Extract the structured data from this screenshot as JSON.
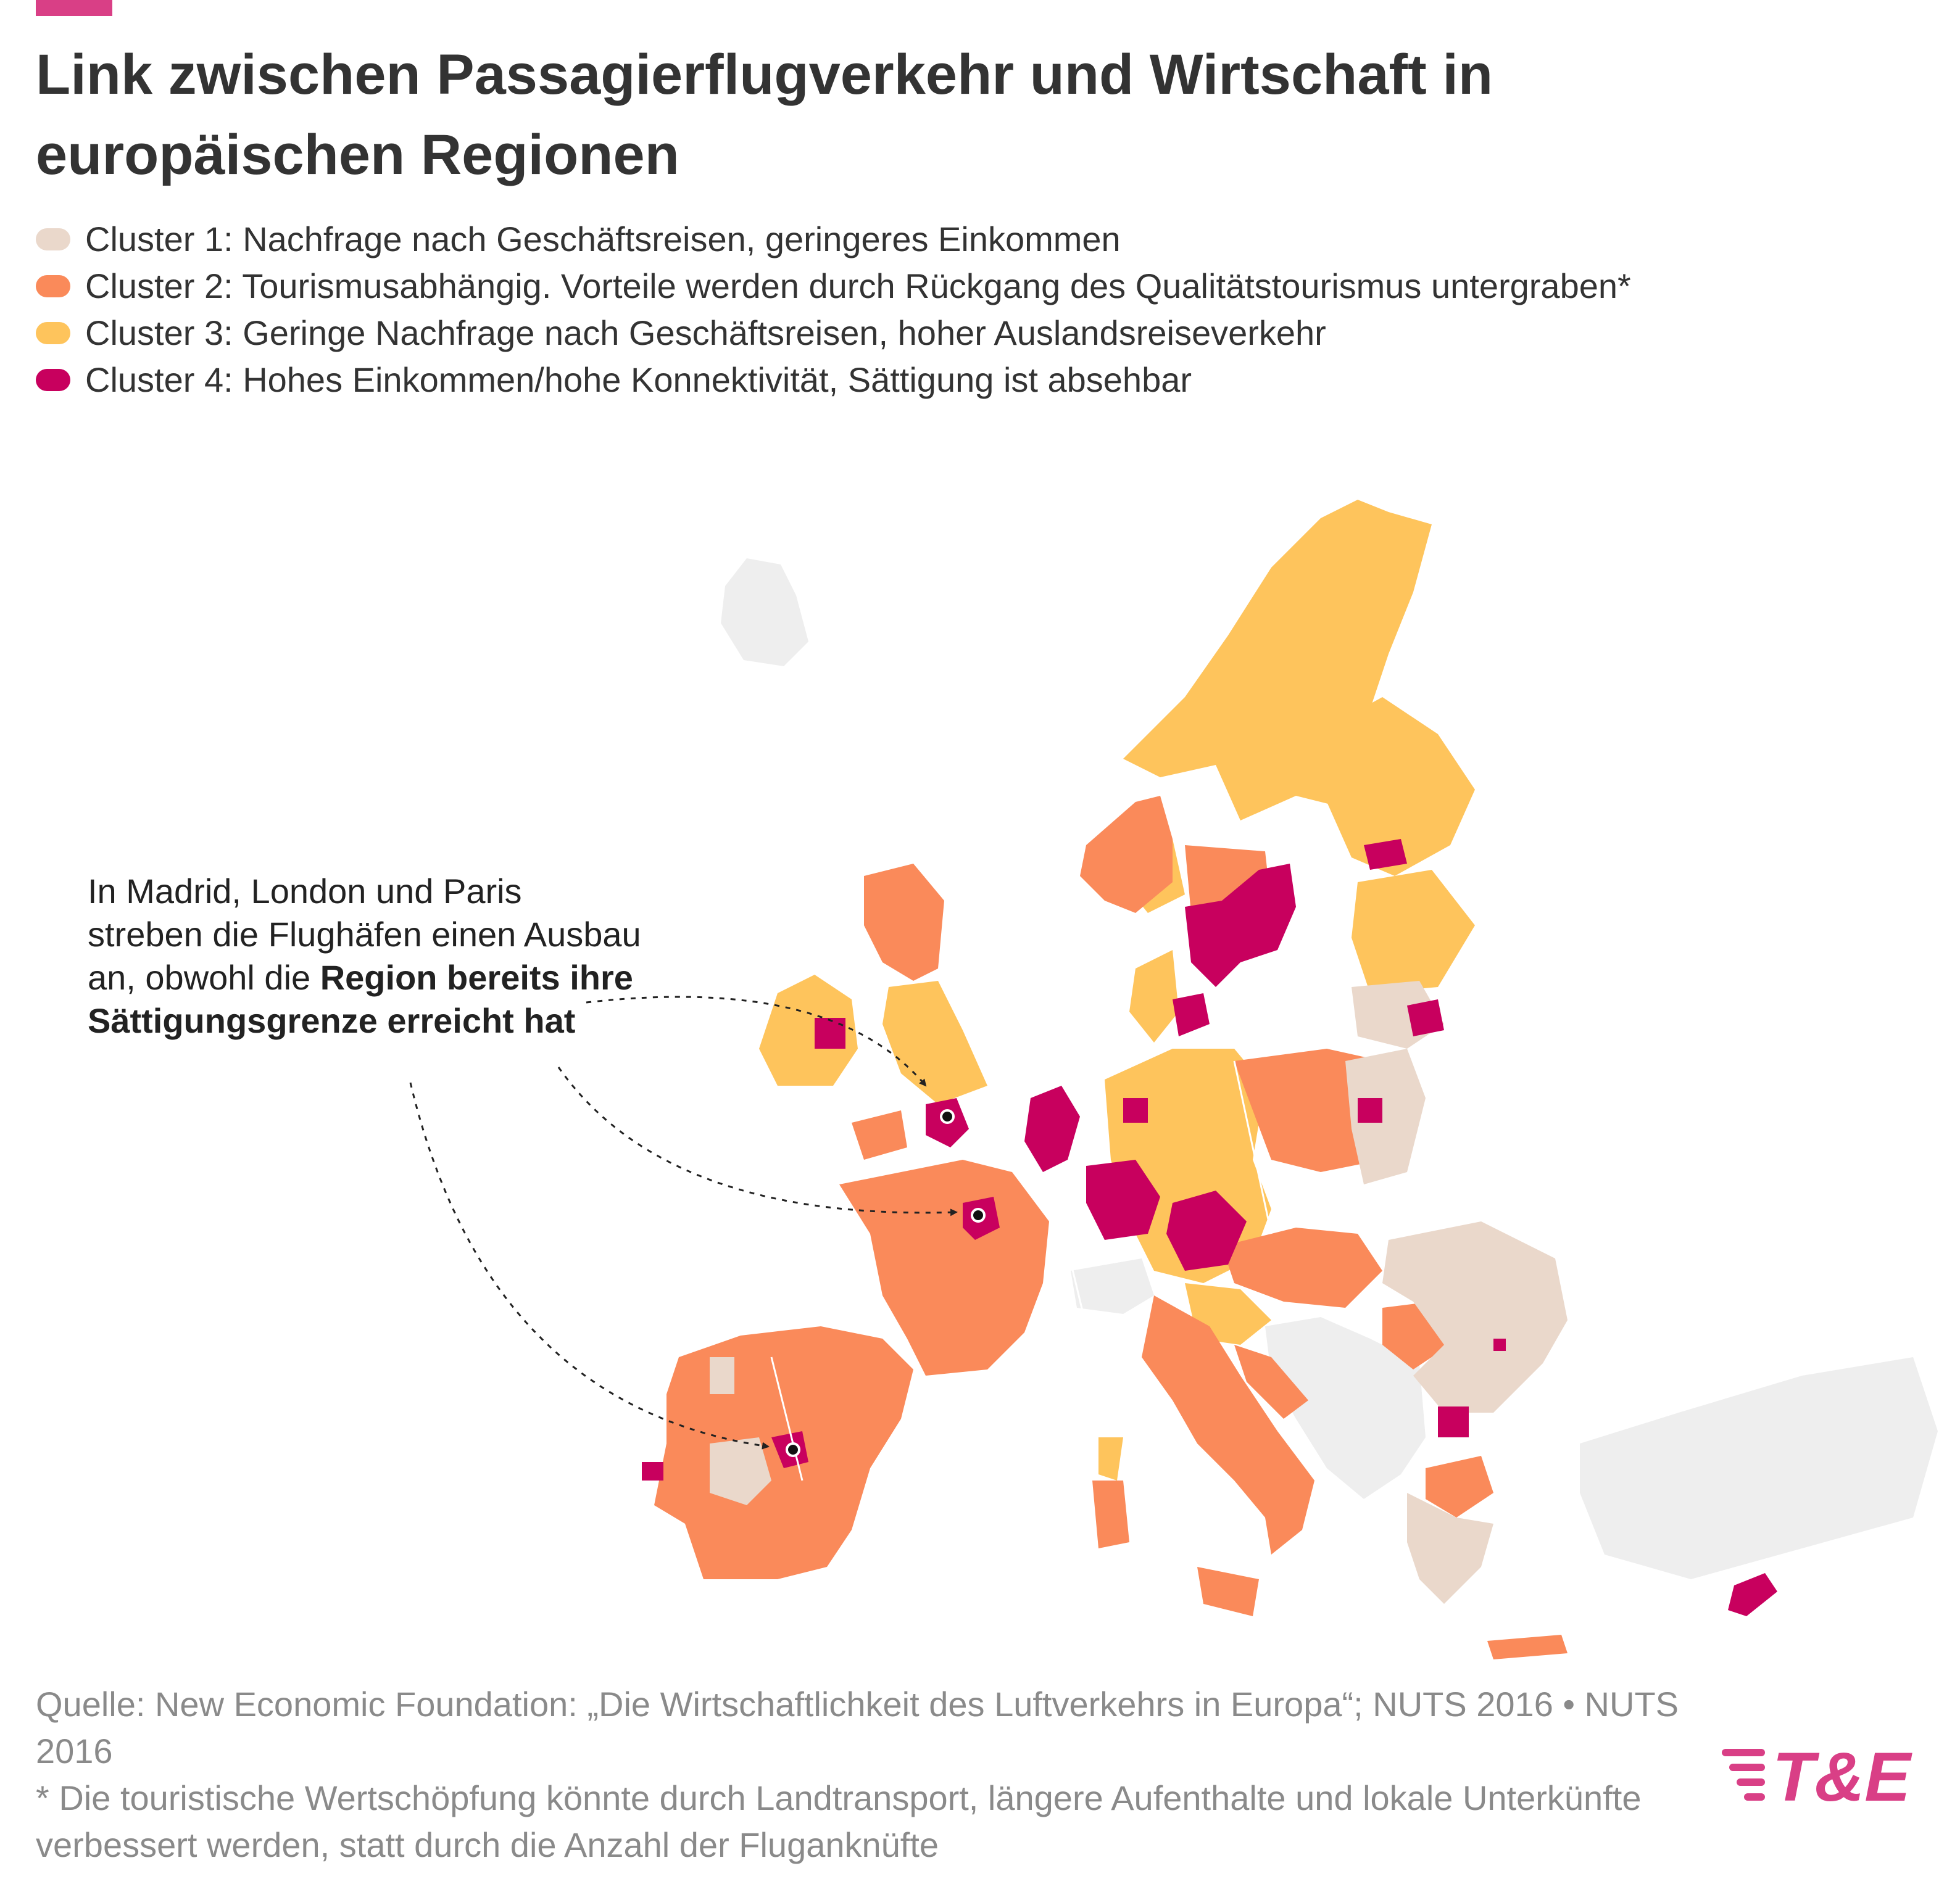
{
  "title": "Link zwischen Passagierflugverkehr und Wirtschaft in europäischen Regionen",
  "legend": [
    {
      "label": "Cluster 1: Nachfrage nach Geschäftsreisen, geringeres Einkommen",
      "color": "#ead8cb"
    },
    {
      "label": "Cluster 2: Tourismusabhängig. Vorteile werden durch Rückgang des Qualitätstourismus untergraben*",
      "color": "#fa8a5a"
    },
    {
      "label": "Cluster 3: Geringe Nachfrage nach Geschäftsreisen, hoher Auslandsreiseverkehr",
      "color": "#fec45c"
    },
    {
      "label": "Cluster 4: Hohes Einkommen/hohe Konnektivität, Sättigung ist absehbar",
      "color": "#c8005e"
    }
  ],
  "no_data_color": "#eeeeee",
  "callout": {
    "text_start": "In Madrid, London und Paris streben die Flughäfen einen Ausbau an, obwohl die",
    "text_bold": "Region bereits ihre Sättigungsgrenze erreicht hat"
  },
  "source": {
    "line": "Quelle: New Economic Foundation: „Die Wirtschaftlichkeit des Luftverkehrs in Europa“; NUTS 2016 • NUTS 2016",
    "footnote": "* Die touristische Wertschöpfung könnte durch Landtransport, längere Aufenthalte und lokale Unterkünfte verbessert werden, statt durch die Anzahl der Fluganknüfte"
  },
  "logo": {
    "text": "T&E",
    "color": "#d93f86"
  }
}
